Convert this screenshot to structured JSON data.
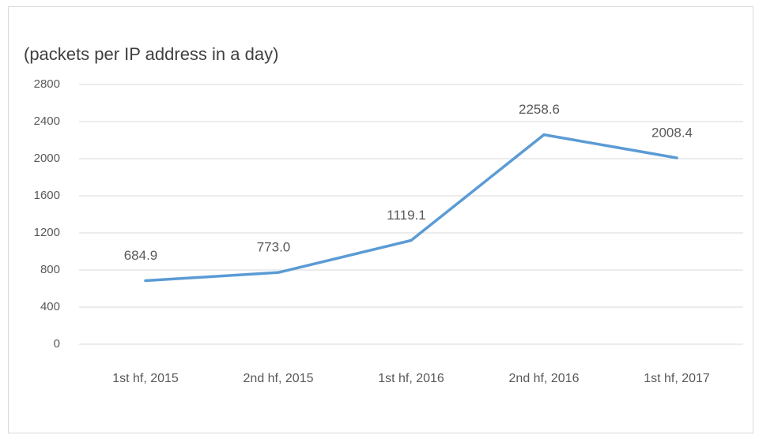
{
  "chart_data": {
    "type": "line",
    "title": "(packets per IP address in a day)",
    "categories": [
      "1st hf, 2015",
      "2nd hf, 2015",
      "1st hf, 2016",
      "2nd hf, 2016",
      "1st hf, 2017"
    ],
    "values": [
      684.9,
      773.0,
      1119.1,
      2258.6,
      2008.4
    ],
    "value_labels": [
      "684.9",
      "773.0",
      "1119.1",
      "2258.6",
      "2008.4"
    ],
    "color": "#5b9bd5",
    "ylim": [
      0,
      2800
    ],
    "yticks": [
      0,
      400,
      800,
      1200,
      1600,
      2000,
      2400,
      2800
    ],
    "grid": true
  }
}
